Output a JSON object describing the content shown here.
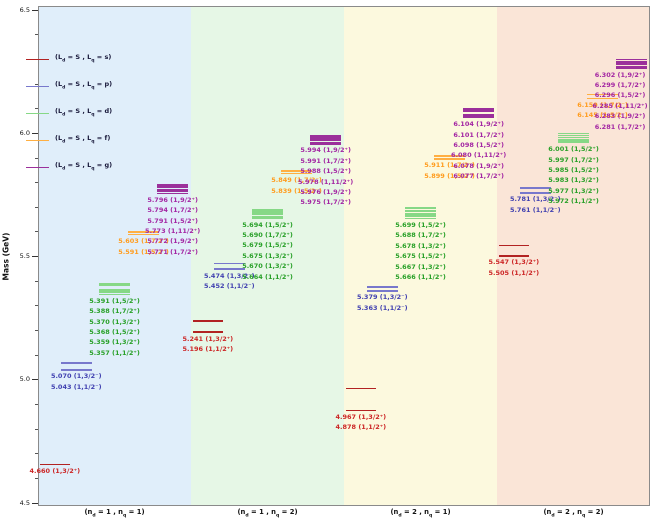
{
  "chart_data": {
    "type": "energy-level-diagram",
    "title": "",
    "ylabel": "Mass (GeV)",
    "ylim": [
      4.5,
      6.5
    ],
    "yticks": [
      4.5,
      5.0,
      5.5,
      6.0,
      6.5
    ],
    "ytick_labels": [
      "4.5",
      "5.0",
      "5.5",
      "6.0",
      "6.5"
    ],
    "minor_tick_step": 0.1,
    "grid": false,
    "legend_position": "upper-left",
    "series": [
      {
        "key": "s",
        "line_color": "#b22222",
        "label_color": "#cc2626",
        "legend_parts": {
          "pre": "(L",
          "sub1": "d",
          "mid": " = S , L",
          "sub2": "q",
          "post": " = s)"
        }
      },
      {
        "key": "p",
        "line_color": "#7878cc",
        "label_color": "#4040b0",
        "legend_parts": {
          "pre": "(L",
          "sub1": "d",
          "mid": " = S , L",
          "sub2": "q",
          "post": " = p)"
        }
      },
      {
        "key": "d",
        "line_color": "#86d886",
        "label_color": "#28a028",
        "legend_parts": {
          "pre": "(L",
          "sub1": "d",
          "mid": " = S , L",
          "sub2": "q",
          "post": " = d)"
        }
      },
      {
        "key": "f",
        "line_color": "#ffaf42",
        "label_color": "#ff9c1e",
        "legend_parts": {
          "pre": "(L",
          "sub1": "d",
          "mid": " = S , L",
          "sub2": "q",
          "post": " = f)"
        }
      },
      {
        "key": "g",
        "line_color": "#9b309b",
        "label_color": "#a326a3",
        "legend_parts": {
          "pre": "(L",
          "sub1": "d",
          "mid": " = S , L",
          "sub2": "q",
          "post": " = g)"
        }
      }
    ],
    "columns": [
      {
        "label_parts": {
          "pre": "(n",
          "sub1": "d",
          "mid": " = 1 , n",
          "sub2": "q",
          "post": " = 1)"
        },
        "band_color": "#e0eefa",
        "levels": {
          "s": [
            {
              "mass": 4.66,
              "label": "4.660 (1,3/2⁺)"
            }
          ],
          "p": [
            {
              "mass": 5.07,
              "label": "5.070 (1,3/2⁻)"
            },
            {
              "mass": 5.043,
              "label": "5.043 (1,1/2⁻)"
            }
          ],
          "d": [
            {
              "mass": 5.391,
              "label": "5.391 (1,5/2⁺)"
            },
            {
              "mass": 5.388,
              "label": "5.388 (1,7/2⁺)"
            },
            {
              "mass": 5.37,
              "label": "5.370 (1,3/2⁺)"
            },
            {
              "mass": 5.368,
              "label": "5.368 (1,5/2⁺)"
            },
            {
              "mass": 5.359,
              "label": "5.359 (1,3/2⁺)"
            },
            {
              "mass": 5.357,
              "label": "5.357 (1,1/2⁺)"
            }
          ],
          "f": [
            {
              "mass": 5.603,
              "label": "5.603 (1,7/2⁻)"
            },
            {
              "mass": 5.591,
              "label": "5.591 (1,5/2⁻)"
            }
          ],
          "g": [
            {
              "mass": 5.796,
              "label": "5.796 (1,9/2⁺)"
            },
            {
              "mass": 5.794,
              "label": "5.794 (1,7/2⁺)"
            },
            {
              "mass": 5.791,
              "label": "5.791 (1,5/2⁺)"
            },
            {
              "mass": 5.773,
              "label": "5.773 (1,11/2⁺)"
            },
            {
              "mass": 5.772,
              "label": "5.772 (1,9/2⁺)"
            },
            {
              "mass": 5.771,
              "label": "5.771 (1,7/2⁺)"
            }
          ]
        }
      },
      {
        "label_parts": {
          "pre": "(n",
          "sub1": "d",
          "mid": " = 1 , n",
          "sub2": "q",
          "post": " = 2)"
        },
        "band_color": "#e6f7e6",
        "levels": {
          "s": [
            {
              "mass": 5.241,
              "label": "5.241 (1,3/2⁺)"
            },
            {
              "mass": 5.196,
              "label": "5.196 (1,1/2⁺)"
            }
          ],
          "p": [
            {
              "mass": 5.474,
              "label": "5.474 (1,3/2⁻)"
            },
            {
              "mass": 5.452,
              "label": "5.452 (1,1/2⁻)"
            }
          ],
          "d": [
            {
              "mass": 5.694,
              "label": "5.694 (1,5/2⁺)"
            },
            {
              "mass": 5.69,
              "label": "5.690 (1,7/2⁺)"
            },
            {
              "mass": 5.679,
              "label": "5.679 (1,5/2⁺)"
            },
            {
              "mass": 5.675,
              "label": "5.675 (1,3/2⁺)"
            },
            {
              "mass": 5.67,
              "label": "5.670 (1,3/2⁺)"
            },
            {
              "mass": 5.664,
              "label": "5.664 (1,1/2⁺)"
            }
          ],
          "f": [
            {
              "mass": 5.849,
              "label": "5.849 (1,7/2⁻)"
            },
            {
              "mass": 5.839,
              "label": "5.839 (1,5/2⁻)"
            }
          ],
          "g": [
            {
              "mass": 5.994,
              "label": "5.994 (1,9/2⁺)"
            },
            {
              "mass": 5.991,
              "label": "5.991 (1,7/2⁺)"
            },
            {
              "mass": 5.988,
              "label": "5.988 (1,5/2⁺)"
            },
            {
              "mass": 5.978,
              "label": "5.978 (1,11/2⁺)"
            },
            {
              "mass": 5.976,
              "label": "5.976 (1,9/2⁺)"
            },
            {
              "mass": 5.975,
              "label": "5.975 (1,7/2⁺)"
            }
          ]
        }
      },
      {
        "label_parts": {
          "pre": "(n",
          "sub1": "d",
          "mid": " = 2 , n",
          "sub2": "q",
          "post": " = 1)"
        },
        "band_color": "#fcf9de",
        "levels": {
          "s": [
            {
              "mass": 4.967,
              "label": "4.967 (1,3/2⁺)"
            },
            {
              "mass": 4.878,
              "label": "4.878 (1,1/2⁺)"
            }
          ],
          "p": [
            {
              "mass": 5.379,
              "label": "5.379 (1,3/2⁻)"
            },
            {
              "mass": 5.363,
              "label": "5.363 (1,1/2⁻)"
            }
          ],
          "d": [
            {
              "mass": 5.699,
              "label": "5.699 (1,5/2⁺)"
            },
            {
              "mass": 5.688,
              "label": "5.688 (1,7/2⁺)"
            },
            {
              "mass": 5.678,
              "label": "5.678 (1,3/2⁺)"
            },
            {
              "mass": 5.675,
              "label": "5.675 (1,5/2⁺)"
            },
            {
              "mass": 5.667,
              "label": "5.667 (1,3/2⁺)"
            },
            {
              "mass": 5.666,
              "label": "5.666 (1,1/2⁺)"
            }
          ],
          "f": [
            {
              "mass": 5.911,
              "label": "5.911 (1,7/2⁻)"
            },
            {
              "mass": 5.899,
              "label": "5.899 (1,5/2⁻)"
            }
          ],
          "g": [
            {
              "mass": 6.104,
              "label": "6.104 (1,9/2⁺)"
            },
            {
              "mass": 6.101,
              "label": "6.101 (1,7/2⁺)"
            },
            {
              "mass": 6.098,
              "label": "6.098 (1,5/2⁺)"
            },
            {
              "mass": 6.08,
              "label": "6.080 (1,11/2⁺)"
            },
            {
              "mass": 6.078,
              "label": "6.078 (1,9/2⁺)"
            },
            {
              "mass": 6.077,
              "label": "6.077 (1,7/2⁺)"
            }
          ]
        }
      },
      {
        "label_parts": {
          "pre": "(n",
          "sub1": "d",
          "mid": " = 2 , n",
          "sub2": "q",
          "post": " = 2)"
        },
        "band_color": "#fae5d7",
        "levels": {
          "s": [
            {
              "mass": 5.547,
              "label": "5.547 (1,3/2⁺)"
            },
            {
              "mass": 5.505,
              "label": "5.505 (1,1/2⁺)"
            }
          ],
          "p": [
            {
              "mass": 5.781,
              "label": "5.781 (1,3/2⁻)"
            },
            {
              "mass": 5.761,
              "label": "5.761 (1,1/2⁻)"
            }
          ],
          "d": [
            {
              "mass": 6.001,
              "label": "6.001 (1,5/2⁺)"
            },
            {
              "mass": 5.997,
              "label": "5.997 (1,7/2⁺)"
            },
            {
              "mass": 5.985,
              "label": "5.985 (1,5/2⁺)"
            },
            {
              "mass": 5.983,
              "label": "5.983 (1,3/2⁺)"
            },
            {
              "mass": 5.977,
              "label": "5.977 (1,3/2⁺)"
            },
            {
              "mass": 5.972,
              "label": "5.972 (1,1/2⁺)"
            }
          ],
          "f": [
            {
              "mass": 6.159,
              "label": "6.159 (1,7/2⁻)"
            },
            {
              "mass": 6.145,
              "label": "6.145 (1,5/2⁻)"
            }
          ],
          "g": [
            {
              "mass": 6.302,
              "label": "6.302 (1,9/2⁺)"
            },
            {
              "mass": 6.299,
              "label": "6.299 (1,7/2⁺)"
            },
            {
              "mass": 6.296,
              "label": "6.296 (1,5/2⁺)"
            },
            {
              "mass": 6.285,
              "label": "6.285 (1,11/2⁺)"
            },
            {
              "mass": 6.283,
              "label": "6.283 (1,9/2⁺)"
            },
            {
              "mass": 6.281,
              "label": "6.281 (1,7/2⁺)"
            }
          ]
        }
      }
    ]
  }
}
